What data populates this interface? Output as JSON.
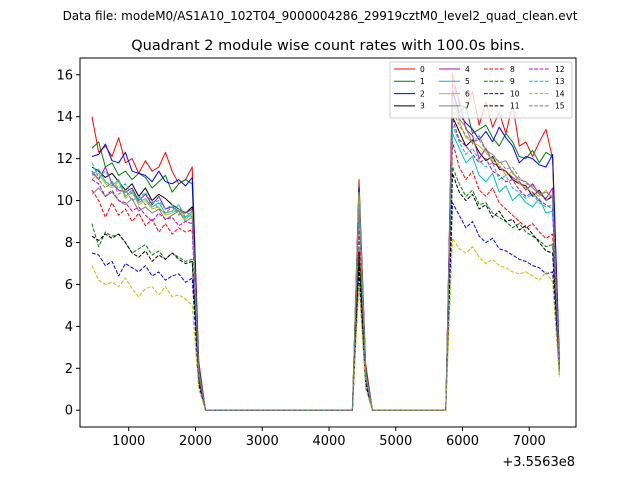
{
  "suptitle": "Data file: modeM0/AS1A10_102T04_9000004286_29919cztM0_level2_quad_clean.evt",
  "chart_data": {
    "type": "line",
    "title": "Quadrant 2 module wise count rates with 100.0s bins.",
    "xlabel": "",
    "ylabel": "",
    "offset_text": "+3.5563e8",
    "xlim": [
      270,
      7700
    ],
    "ylim": [
      -0.8,
      16.8
    ],
    "x_ticks": [
      1000,
      2000,
      3000,
      4000,
      5000,
      6000,
      7000
    ],
    "x_tick_labels": [
      "1000",
      "2000",
      "3000",
      "4000",
      "5000",
      "6000",
      "7000"
    ],
    "y_ticks": [
      0,
      2,
      4,
      6,
      8,
      10,
      12,
      14,
      16
    ],
    "y_tick_labels": [
      "0",
      "2",
      "4",
      "6",
      "8",
      "10",
      "12",
      "14",
      "16"
    ],
    "legend_position": "top-right",
    "x": [
      450,
      550,
      650,
      750,
      850,
      950,
      1050,
      1150,
      1250,
      1350,
      1450,
      1550,
      1650,
      1750,
      1850,
      1950,
      2050,
      2150,
      2250,
      2350,
      2450,
      2550,
      2650,
      2750,
      2850,
      2950,
      3050,
      3150,
      3250,
      3350,
      3450,
      3550,
      3650,
      3750,
      3850,
      3950,
      4050,
      4150,
      4250,
      4350,
      4450,
      4550,
      4650,
      4750,
      4850,
      4950,
      5050,
      5150,
      5250,
      5350,
      5450,
      5550,
      5650,
      5750,
      5850,
      5950,
      6050,
      6150,
      6250,
      6350,
      6450,
      6550,
      6650,
      6750,
      6850,
      6950,
      7050,
      7150,
      7250,
      7350,
      7450
    ],
    "series": [
      {
        "name": "0",
        "color": "#ff0000",
        "dash": "solid",
        "values": [
          14.0,
          12.3,
          12.6,
          12.1,
          13.0,
          11.8,
          12.0,
          11.3,
          11.9,
          11.4,
          11.6,
          12.3,
          11.4,
          10.8,
          11.0,
          11.6,
          2.3,
          0,
          0,
          0,
          0,
          0,
          0,
          0,
          0,
          0,
          0,
          0,
          0,
          0,
          0,
          0,
          0,
          0,
          0,
          0,
          0,
          0,
          0,
          0,
          11.0,
          2.2,
          0,
          0,
          0,
          0,
          0,
          0,
          0,
          0,
          0,
          0,
          0,
          0,
          16.1,
          14.6,
          14.4,
          15.2,
          13.6,
          14.7,
          13.5,
          14.2,
          13.2,
          14.6,
          12.6,
          12.8,
          12.1,
          12.8,
          13.4,
          12.0,
          2.3
        ]
      },
      {
        "name": "1",
        "color": "#008000",
        "dash": "solid",
        "values": [
          12.5,
          12.8,
          11.6,
          11.8,
          11.2,
          11.4,
          11.0,
          11.3,
          11.1,
          10.6,
          10.9,
          11.2,
          10.4,
          10.8,
          11.0,
          10.8,
          2.1,
          0,
          0,
          0,
          0,
          0,
          0,
          0,
          0,
          0,
          0,
          0,
          0,
          0,
          0,
          0,
          0,
          0,
          0,
          0,
          0,
          0,
          0,
          0,
          10.7,
          2.0,
          0,
          0,
          0,
          0,
          0,
          0,
          0,
          0,
          0,
          0,
          0,
          0,
          15.3,
          14.2,
          14.5,
          13.2,
          13.4,
          13.6,
          13.0,
          12.6,
          13.2,
          12.8,
          12.1,
          12.0,
          12.4,
          11.8,
          12.3,
          12.1,
          2.4
        ]
      },
      {
        "name": "2",
        "color": "#0000ff",
        "dash": "solid",
        "values": [
          12.1,
          12.2,
          12.7,
          11.9,
          11.8,
          12.3,
          11.4,
          11.3,
          11.2,
          10.9,
          11.4,
          10.9,
          10.8,
          11.0,
          10.7,
          11.1,
          2.0,
          0,
          0,
          0,
          0,
          0,
          0,
          0,
          0,
          0,
          0,
          0,
          0,
          0,
          0,
          0,
          0,
          0,
          0,
          0,
          0,
          0,
          0,
          0,
          10.6,
          1.9,
          0,
          0,
          0,
          0,
          0,
          0,
          0,
          0,
          0,
          0,
          0,
          0,
          15.2,
          14.1,
          13.7,
          13.4,
          12.9,
          13.3,
          12.8,
          13.5,
          13.0,
          12.6,
          11.8,
          12.1,
          12.0,
          11.7,
          11.6,
          12.2,
          2.6
        ]
      },
      {
        "name": "3",
        "color": "#000000",
        "dash": "solid",
        "values": [
          11.6,
          11.4,
          11.1,
          11.3,
          10.9,
          10.5,
          10.8,
          10.2,
          10.6,
          10.0,
          10.3,
          10.1,
          9.8,
          9.6,
          9.4,
          9.7,
          1.9,
          0,
          0,
          0,
          0,
          0,
          0,
          0,
          0,
          0,
          0,
          0,
          0,
          0,
          0,
          0,
          0,
          0,
          0,
          0,
          0,
          0,
          0,
          0,
          7.6,
          1.5,
          0,
          0,
          0,
          0,
          0,
          0,
          0,
          0,
          0,
          0,
          0,
          0,
          14.0,
          13.3,
          12.6,
          12.9,
          12.3,
          11.9,
          12.1,
          11.5,
          11.4,
          11.0,
          10.8,
          10.7,
          10.2,
          10.5,
          10.0,
          10.2,
          2.1
        ]
      },
      {
        "name": "4",
        "color": "#bf00bf",
        "dash": "solid",
        "values": [
          11.4,
          11.0,
          11.6,
          10.8,
          10.5,
          10.4,
          10.6,
          10.0,
          10.3,
          9.8,
          10.2,
          9.6,
          9.7,
          9.5,
          9.4,
          9.6,
          1.9,
          0,
          0,
          0,
          0,
          0,
          0,
          0,
          0,
          0,
          0,
          0,
          0,
          0,
          0,
          0,
          0,
          0,
          0,
          0,
          0,
          0,
          0,
          0,
          10.0,
          1.8,
          0,
          0,
          0,
          0,
          0,
          0,
          0,
          0,
          0,
          0,
          0,
          0,
          15.6,
          14.8,
          13.4,
          13.1,
          12.0,
          12.5,
          11.8,
          11.6,
          11.4,
          11.1,
          10.9,
          10.5,
          10.8,
          10.3,
          10.1,
          10.6,
          2.2
        ]
      },
      {
        "name": "5",
        "color": "#00bfbf",
        "dash": "solid",
        "values": [
          11.2,
          11.5,
          10.9,
          10.7,
          11.0,
          10.2,
          10.5,
          9.9,
          10.1,
          9.7,
          9.9,
          9.4,
          9.5,
          9.8,
          9.2,
          9.5,
          1.8,
          0,
          0,
          0,
          0,
          0,
          0,
          0,
          0,
          0,
          0,
          0,
          0,
          0,
          0,
          0,
          0,
          0,
          0,
          0,
          0,
          0,
          0,
          0,
          10.4,
          1.8,
          0,
          0,
          0,
          0,
          0,
          0,
          0,
          0,
          0,
          0,
          0,
          0,
          13.2,
          12.5,
          11.8,
          12.1,
          11.2,
          10.9,
          11.3,
          10.4,
          10.7,
          10.0,
          10.3,
          9.9,
          9.7,
          10.1,
          9.4,
          9.5,
          1.9
        ]
      },
      {
        "name": "6",
        "color": "#bfbf00",
        "dash": "solid",
        "values": [
          11.0,
          11.3,
          10.8,
          10.6,
          10.9,
          10.1,
          10.4,
          9.8,
          10.0,
          9.6,
          9.7,
          9.3,
          9.4,
          9.6,
          9.1,
          9.4,
          1.8,
          0,
          0,
          0,
          0,
          0,
          0,
          0,
          0,
          0,
          0,
          0,
          0,
          0,
          0,
          0,
          0,
          0,
          0,
          0,
          0,
          0,
          0,
          0,
          10.3,
          1.7,
          0,
          0,
          0,
          0,
          0,
          0,
          0,
          0,
          0,
          0,
          0,
          0,
          14.5,
          13.8,
          13.0,
          12.8,
          12.6,
          12.3,
          11.9,
          11.7,
          11.2,
          11.4,
          10.8,
          10.6,
          10.4,
          10.2,
          10.5,
          10.1,
          2.0
        ]
      },
      {
        "name": "7",
        "color": "#808080",
        "dash": "solid",
        "values": [
          10.3,
          10.6,
          10.2,
          10.4,
          10.0,
          9.8,
          10.1,
          9.5,
          9.7,
          9.4,
          9.6,
          9.1,
          9.3,
          9.5,
          9.0,
          9.2,
          1.7,
          0,
          0,
          0,
          0,
          0,
          0,
          0,
          0,
          0,
          0,
          0,
          0,
          0,
          0,
          0,
          0,
          0,
          0,
          0,
          0,
          0,
          0,
          0,
          9.8,
          1.6,
          0,
          0,
          0,
          0,
          0,
          0,
          0,
          0,
          0,
          0,
          0,
          0,
          14.8,
          13.9,
          13.5,
          12.7,
          13.1,
          12.4,
          12.2,
          11.8,
          11.9,
          11.3,
          11.0,
          10.9,
          10.6,
          10.3,
          10.4,
          10.2,
          2.0
        ]
      },
      {
        "name": "8",
        "color": "#ff0000",
        "dash": "dashed",
        "values": [
          10.5,
          10.0,
          9.2,
          9.9,
          9.3,
          9.6,
          9.0,
          9.4,
          8.8,
          9.1,
          8.5,
          8.9,
          8.4,
          8.7,
          8.5,
          8.6,
          1.6,
          0,
          0,
          0,
          0,
          0,
          0,
          0,
          0,
          0,
          0,
          0,
          0,
          0,
          0,
          0,
          0,
          0,
          0,
          0,
          0,
          0,
          0,
          0,
          8.6,
          1.5,
          0,
          0,
          0,
          0,
          0,
          0,
          0,
          0,
          0,
          0,
          0,
          0,
          12.8,
          11.6,
          11.0,
          11.4,
          10.5,
          10.2,
          10.6,
          9.9,
          9.6,
          9.3,
          9.0,
          8.7,
          8.9,
          8.5,
          8.2,
          8.4,
          1.8
        ]
      },
      {
        "name": "9",
        "color": "#008000",
        "dash": "dashed",
        "values": [
          8.9,
          7.8,
          8.5,
          8.3,
          8.4,
          8.0,
          7.5,
          7.7,
          7.9,
          7.4,
          7.6,
          7.2,
          7.5,
          7.3,
          7.1,
          7.2,
          1.4,
          0,
          0,
          0,
          0,
          0,
          0,
          0,
          0,
          0,
          0,
          0,
          0,
          0,
          0,
          0,
          0,
          0,
          0,
          0,
          0,
          0,
          0,
          0,
          7.2,
          1.3,
          0,
          0,
          0,
          0,
          0,
          0,
          0,
          0,
          0,
          0,
          0,
          0,
          11.6,
          10.8,
          10.2,
          10.5,
          9.8,
          9.9,
          9.4,
          9.2,
          9.0,
          8.7,
          8.9,
          8.5,
          8.3,
          8.1,
          7.8,
          7.9,
          1.7
        ]
      },
      {
        "name": "10",
        "color": "#0000ff",
        "dash": "dashed",
        "values": [
          7.5,
          7.4,
          6.9,
          7.1,
          6.4,
          7.0,
          6.8,
          6.6,
          6.9,
          6.4,
          6.6,
          6.2,
          6.4,
          6.5,
          6.1,
          6.3,
          1.2,
          0,
          0,
          0,
          0,
          0,
          0,
          0,
          0,
          0,
          0,
          0,
          0,
          0,
          0,
          0,
          0,
          0,
          0,
          0,
          0,
          0,
          0,
          0,
          6.5,
          1.2,
          0,
          0,
          0,
          0,
          0,
          0,
          0,
          0,
          0,
          0,
          0,
          0,
          9.9,
          9.3,
          8.7,
          9.0,
          8.3,
          8.0,
          8.2,
          7.7,
          7.6,
          7.4,
          7.2,
          7.1,
          6.9,
          6.8,
          6.5,
          6.6,
          1.9
        ]
      },
      {
        "name": "11",
        "color": "#000000",
        "dash": "dashed",
        "values": [
          8.3,
          8.1,
          8.4,
          8.2,
          8.4,
          8.0,
          7.5,
          7.3,
          7.6,
          7.1,
          7.4,
          7.2,
          7.5,
          7.2,
          7.0,
          7.1,
          1.4,
          0,
          0,
          0,
          0,
          0,
          0,
          0,
          0,
          0,
          0,
          0,
          0,
          0,
          0,
          0,
          0,
          0,
          0,
          0,
          0,
          0,
          0,
          0,
          7.0,
          1.3,
          0,
          0,
          0,
          0,
          0,
          0,
          0,
          0,
          0,
          0,
          0,
          0,
          11.3,
          10.4,
          10.0,
          10.3,
          9.6,
          9.8,
          9.2,
          9.5,
          9.0,
          9.1,
          8.6,
          8.8,
          8.4,
          8.0,
          7.6,
          7.5,
          2.0
        ]
      },
      {
        "name": "12",
        "color": "#bf00bf",
        "dash": "dashed",
        "values": [
          11.0,
          10.8,
          10.2,
          10.5,
          10.0,
          9.9,
          9.5,
          9.7,
          9.3,
          9.0,
          9.4,
          9.1,
          9.2,
          8.8,
          9.0,
          8.9,
          1.7,
          0,
          0,
          0,
          0,
          0,
          0,
          0,
          0,
          0,
          0,
          0,
          0,
          0,
          0,
          0,
          0,
          0,
          0,
          0,
          0,
          0,
          0,
          0,
          9.5,
          1.6,
          0,
          0,
          0,
          0,
          0,
          0,
          0,
          0,
          0,
          0,
          0,
          0,
          13.9,
          12.9,
          12.6,
          12.2,
          11.8,
          12.0,
          11.4,
          11.2,
          10.9,
          11.0,
          10.5,
          10.2,
          10.4,
          10.0,
          9.8,
          9.6,
          2.0
        ]
      },
      {
        "name": "13",
        "color": "#00bfbf",
        "dash": "dashed",
        "values": [
          11.8,
          11.1,
          11.4,
          10.9,
          10.6,
          10.8,
          10.3,
          10.1,
          10.4,
          9.9,
          10.0,
          9.6,
          9.8,
          9.4,
          9.2,
          9.3,
          1.7,
          0,
          0,
          0,
          0,
          0,
          0,
          0,
          0,
          0,
          0,
          0,
          0,
          0,
          0,
          0,
          0,
          0,
          0,
          0,
          0,
          0,
          0,
          0,
          9.7,
          1.6,
          0,
          0,
          0,
          0,
          0,
          0,
          0,
          0,
          0,
          0,
          0,
          0,
          13.6,
          12.8,
          12.2,
          12.5,
          11.9,
          11.6,
          11.8,
          11.0,
          11.2,
          10.6,
          10.4,
          10.1,
          10.3,
          9.9,
          9.7,
          9.8,
          1.9
        ]
      },
      {
        "name": "14",
        "color": "#bfbf00",
        "dash": "dashed",
        "values": [
          6.9,
          6.2,
          6.0,
          6.1,
          5.9,
          6.3,
          5.8,
          5.4,
          5.8,
          5.9,
          5.5,
          5.9,
          5.4,
          5.5,
          5.3,
          5.0,
          1.0,
          0,
          0,
          0,
          0,
          0,
          0,
          0,
          0,
          0,
          0,
          0,
          0,
          0,
          0,
          0,
          0,
          0,
          0,
          0,
          0,
          0,
          0,
          0,
          6.0,
          1.0,
          0,
          0,
          0,
          0,
          0,
          0,
          0,
          0,
          0,
          0,
          0,
          0,
          8.2,
          7.7,
          7.5,
          7.8,
          7.3,
          7.0,
          7.2,
          6.9,
          6.8,
          6.6,
          6.5,
          6.6,
          6.4,
          6.2,
          6.6,
          6.1,
          1.6
        ]
      },
      {
        "name": "15",
        "color": "#808080",
        "dash": "dashed",
        "values": [
          11.3,
          11.0,
          10.6,
          10.9,
          10.3,
          10.5,
          10.0,
          10.2,
          9.8,
          10.0,
          9.6,
          9.4,
          9.7,
          9.3,
          9.5,
          9.2,
          1.8,
          0,
          0,
          0,
          0,
          0,
          0,
          0,
          0,
          0,
          0,
          0,
          0,
          0,
          0,
          0,
          0,
          0,
          0,
          0,
          0,
          0,
          0,
          0,
          9.9,
          1.7,
          0,
          0,
          0,
          0,
          0,
          0,
          0,
          0,
          0,
          0,
          0,
          0,
          14.3,
          13.6,
          13.1,
          12.8,
          12.9,
          12.4,
          12.0,
          11.9,
          11.5,
          11.6,
          11.1,
          10.8,
          10.7,
          10.4,
          10.0,
          10.3,
          2.1
        ]
      }
    ]
  }
}
